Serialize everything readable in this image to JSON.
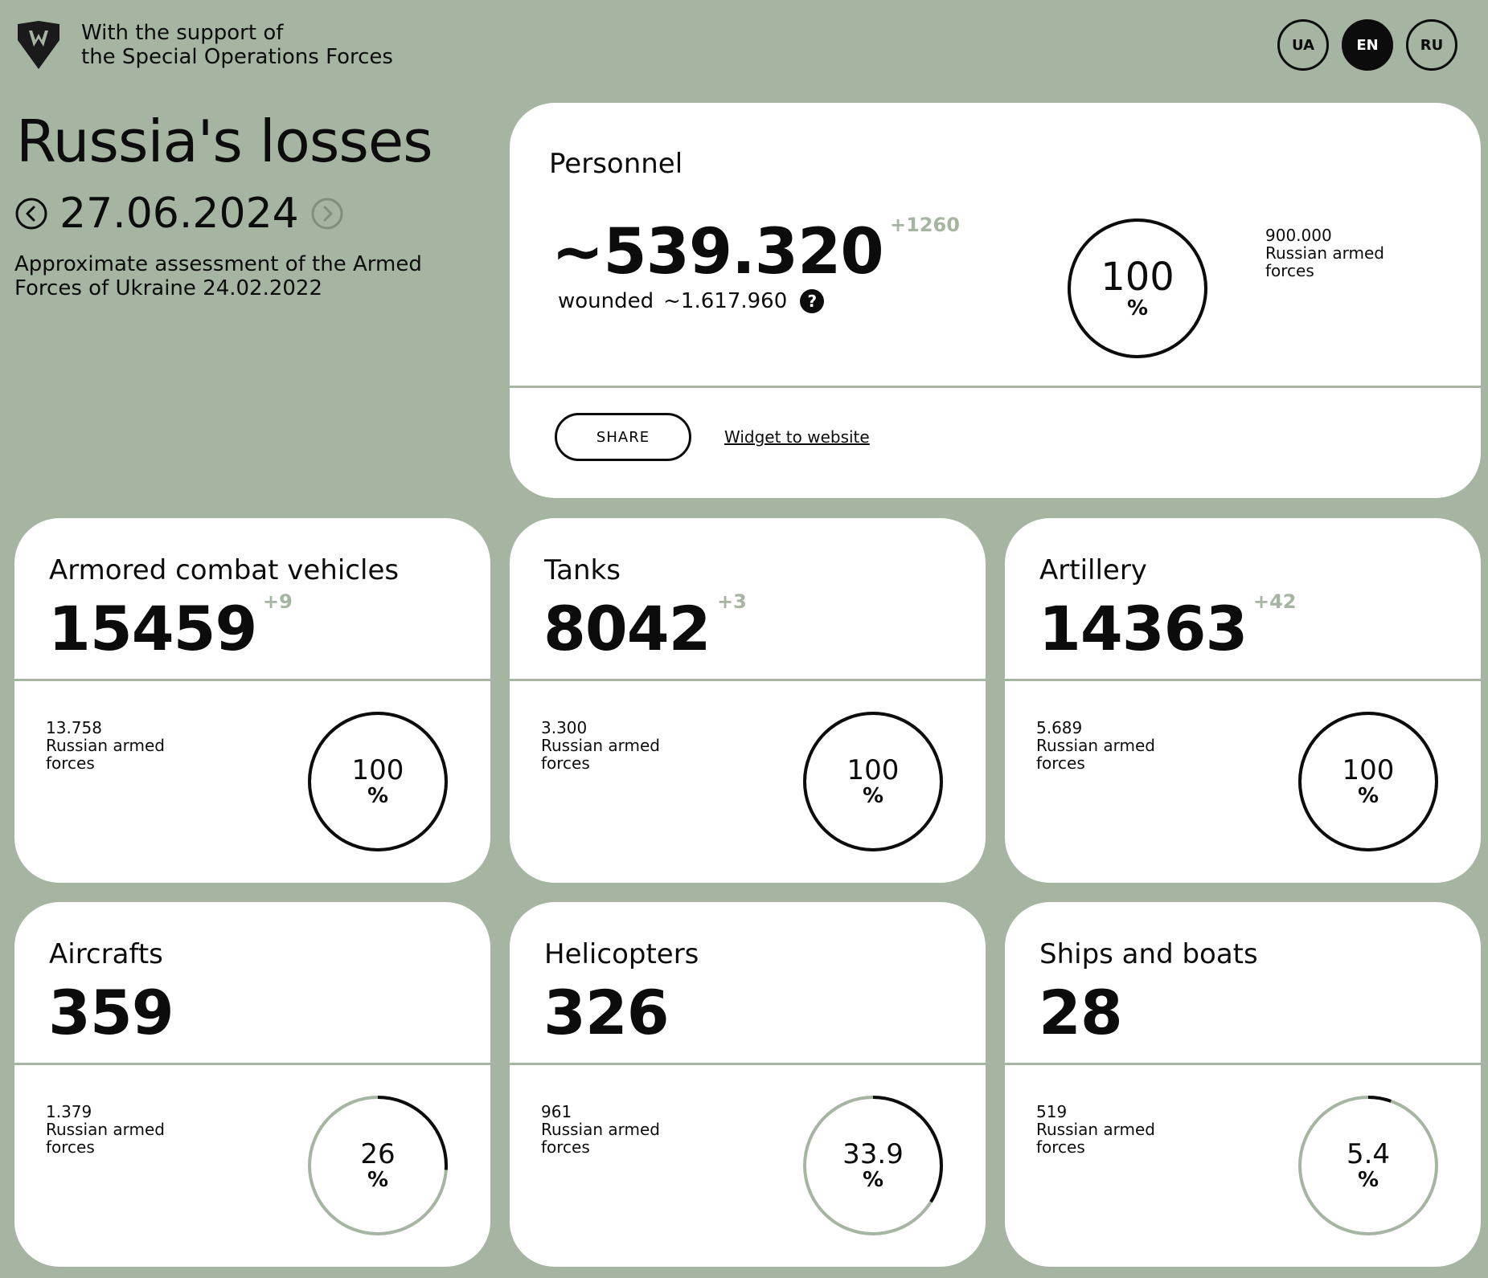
{
  "header": {
    "support_line1": "With the support of",
    "support_line2": "the Special Operations Forces",
    "languages": [
      {
        "code": "UA",
        "active": false
      },
      {
        "code": "EN",
        "active": true
      },
      {
        "code": "RU",
        "active": false
      }
    ]
  },
  "page": {
    "title": "Russia's losses",
    "date": "27.06.2024",
    "subtitle": "Approximate assessment of the Armed Forces of Ukraine 24.02.2022"
  },
  "personnel": {
    "title": "Personnel",
    "value": "~539.320",
    "delta": "+1260",
    "wounded_label": "wounded",
    "wounded_value": "~1.617.960",
    "help_icon": "?",
    "reference_value": "900.000",
    "reference_label": "Russian armed forces",
    "percent": "100",
    "percent_fraction": 1.0,
    "percent_unit": "%",
    "share_label": "SHARE",
    "widget_label": "Widget to website"
  },
  "cards": [
    {
      "title": "Armored combat vehicles",
      "value": "15459",
      "delta": "+9",
      "reference_value": "13.758",
      "reference_label": "Russian armed forces",
      "percent": "100",
      "percent_fraction": 1.0,
      "percent_unit": "%"
    },
    {
      "title": "Tanks",
      "value": "8042",
      "delta": "+3",
      "reference_value": "3.300",
      "reference_label": "Russian armed forces",
      "percent": "100",
      "percent_fraction": 1.0,
      "percent_unit": "%"
    },
    {
      "title": "Artillery",
      "value": "14363",
      "delta": "+42",
      "reference_value": "5.689",
      "reference_label": "Russian armed forces",
      "percent": "100",
      "percent_fraction": 1.0,
      "percent_unit": "%"
    },
    {
      "title": "Aircrafts",
      "value": "359",
      "delta": "",
      "reference_value": "1.379",
      "reference_label": "Russian armed forces",
      "percent": "26",
      "percent_fraction": 0.26,
      "percent_unit": "%"
    },
    {
      "title": "Helicopters",
      "value": "326",
      "delta": "",
      "reference_value": "961",
      "reference_label": "Russian armed forces",
      "percent": "33.9",
      "percent_fraction": 0.339,
      "percent_unit": "%"
    },
    {
      "title": "Ships and boats",
      "value": "28",
      "delta": "",
      "reference_value": "519",
      "reference_label": "Russian armed forces",
      "percent": "5.4",
      "percent_fraction": 0.054,
      "percent_unit": "%"
    }
  ],
  "colors": {
    "background": "#a5b5a1",
    "card": "#ffffff",
    "text": "#0c0c0c",
    "ring_track": "#a5b5a1",
    "ring_fill": "#0c0c0c"
  }
}
